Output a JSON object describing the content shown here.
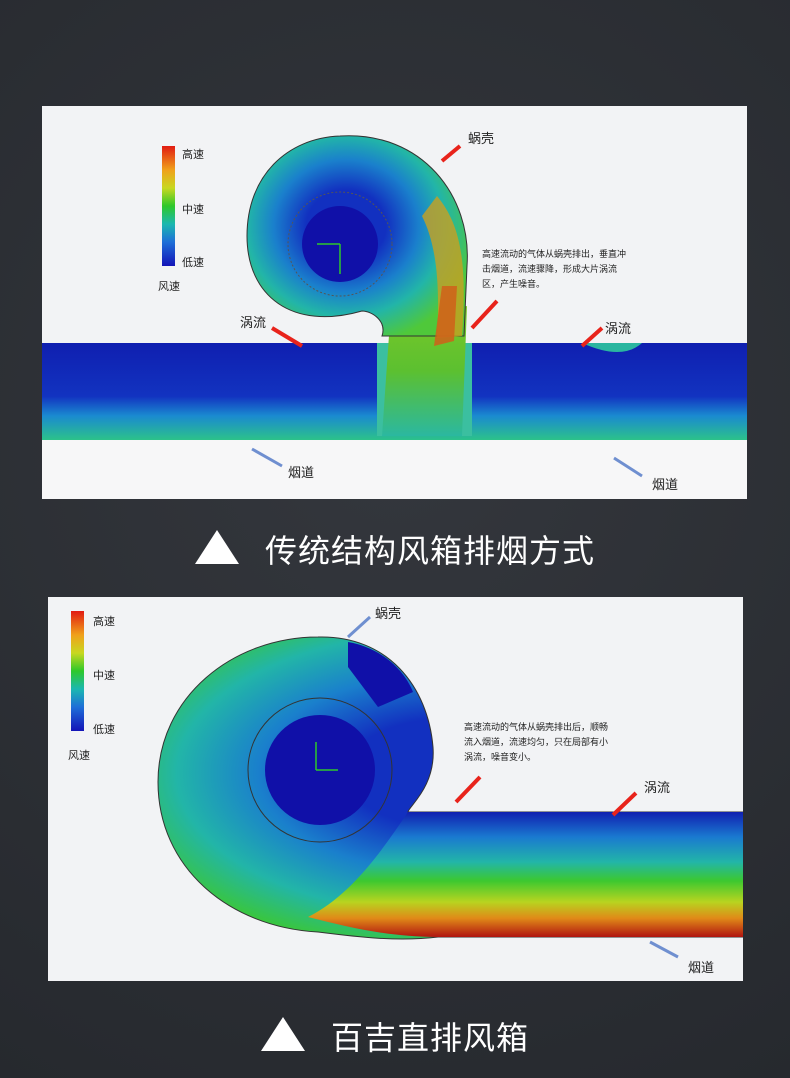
{
  "panel_traditional": {
    "legend": {
      "high": "高速",
      "mid": "中速",
      "low": "低速",
      "title": "风速"
    },
    "labels": {
      "volute": "蜗壳",
      "vortex_left": "涡流",
      "vortex_right": "涡流",
      "flue_left": "烟道",
      "flue_right": "烟道"
    },
    "note": "高速流动的气体从蜗壳排出，垂直冲击烟道，流速骤降，形成大片涡流区，产生噪音。",
    "caption": "传统结构风箱排烟方式"
  },
  "panel_direct": {
    "legend": {
      "high": "高速",
      "mid": "中速",
      "low": "低速",
      "title": "风速"
    },
    "labels": {
      "volute": "蜗壳",
      "vortex": "涡流",
      "flue": "烟道"
    },
    "note": "高速流动的气体从蜗壳排出后，顺畅流入烟道，流速均匀，只在局部有小涡流，噪音变小。",
    "caption": "百吉直排风箱"
  },
  "colors": {
    "high": "#e11b12",
    "mid": "#2ec82a",
    "low": "#1414b8",
    "arrow_red": "#e8231b",
    "arrow_blue": "#6f8fd0"
  }
}
